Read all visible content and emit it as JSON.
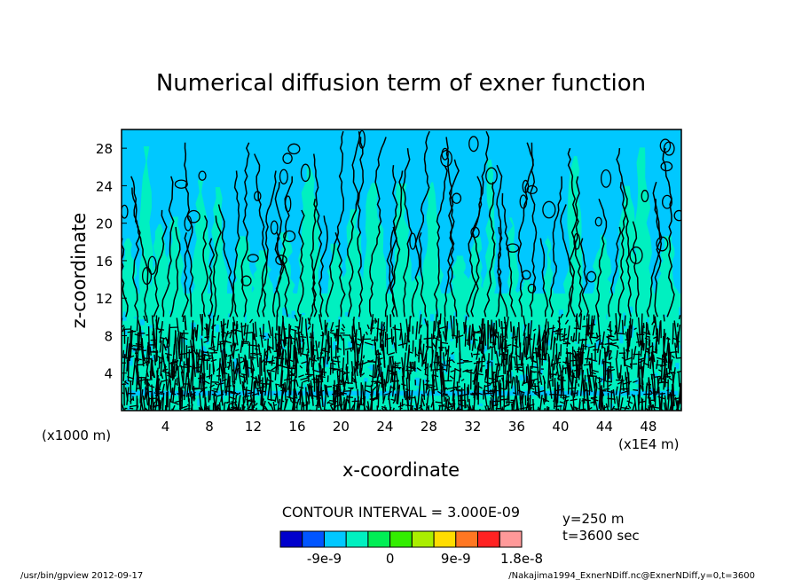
{
  "chart_data": {
    "type": "heatmap",
    "title": "Numerical diffusion term of exner function",
    "xlabel": "x-coordinate",
    "ylabel": "z-coordinate",
    "x_unit_left": "(x1000 m)",
    "x_unit_right": "(x1E4 m)",
    "xlim": [
      0,
      51
    ],
    "ylim": [
      0,
      30
    ],
    "x_ticks": [
      "4",
      "8",
      "12",
      "16",
      "20",
      "24",
      "28",
      "32",
      "36",
      "40",
      "44",
      "48"
    ],
    "y_ticks": [
      "4",
      "8",
      "12",
      "16",
      "20",
      "24",
      "28"
    ],
    "contour_interval_text": "CONTOUR INTERVAL = 3.000E-09",
    "info_y": "y=250 m",
    "info_t": "t=3600 sec",
    "colorbar": {
      "colors": [
        "#0000cc",
        "#0055ff",
        "#00c8ff",
        "#00f0c0",
        "#00ee55",
        "#33ee00",
        "#aaee00",
        "#ffdd00",
        "#ff7722",
        "#ff2222",
        "#ff9999"
      ],
      "labels": [
        "-9e-9",
        "0",
        "9e-9",
        "1.8e-8"
      ],
      "label_values": [
        -9e-09,
        0,
        9e-09,
        1.8e-08
      ],
      "min": -1.5e-08,
      "interval": 3e-09
    },
    "field_bands": [
      {
        "z_range": [
          12.5,
          30
        ],
        "dominant": "#00c8ff",
        "secondary": "#00f0c0"
      },
      {
        "z_range": [
          10,
          12.5
        ],
        "dominant": "#00f0c0",
        "secondary": "#00c8ff"
      },
      {
        "z_range": [
          0,
          10
        ],
        "dominant": "#00f0c0",
        "secondary": "#00c8ff"
      }
    ]
  },
  "footer": {
    "left": "/usr/bin/gpview  2012-09-17",
    "right": "/Nakajima1994_ExnerNDiff.nc@ExnerNDiff,y=0,t=3600"
  }
}
